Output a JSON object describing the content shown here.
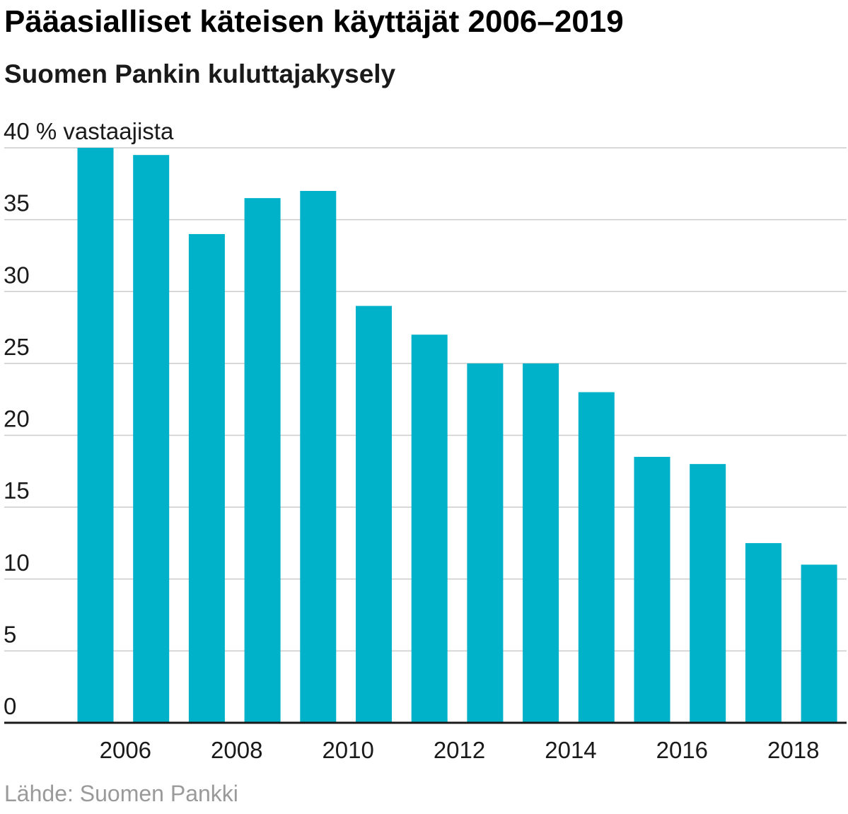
{
  "title": "Pääasialliset käteisen käyttäjät 2006–2019",
  "subtitle": "Suomen Pankin kuluttajakysely",
  "source": "Lähde: Suomen Pankki",
  "colors": {
    "bar": "#00b2c9",
    "grid": "#cccccc",
    "axis": "#1a1a1a"
  },
  "chart_data": {
    "type": "bar",
    "title": "Pääasialliset käteisen käyttäjät 2006–2019",
    "subtitle": "Suomen Pankin kuluttajakysely",
    "xlabel": "",
    "ylabel": "% vastaajista",
    "y_top_label": "40 % vastaajista",
    "ylim": [
      0,
      40
    ],
    "yticks": [
      0,
      5,
      10,
      15,
      20,
      25,
      30,
      35,
      40
    ],
    "ytick_labels": [
      "0",
      "5",
      "10",
      "15",
      "20",
      "25",
      "30",
      "35",
      "40 % vastaajista"
    ],
    "categories": [
      "2006",
      "2007",
      "2008",
      "2009",
      "2010",
      "2011",
      "2012",
      "2013",
      "2014",
      "2015",
      "2016",
      "2017",
      "2018",
      "2019"
    ],
    "xtick_labels": [
      "2006",
      "2008",
      "2010",
      "2012",
      "2014",
      "2016",
      "2018"
    ],
    "values": [
      40,
      39.5,
      34,
      36.5,
      37,
      29,
      27,
      25,
      25,
      23,
      18.5,
      18,
      12.5,
      11
    ],
    "grid": true,
    "legend": "none"
  }
}
